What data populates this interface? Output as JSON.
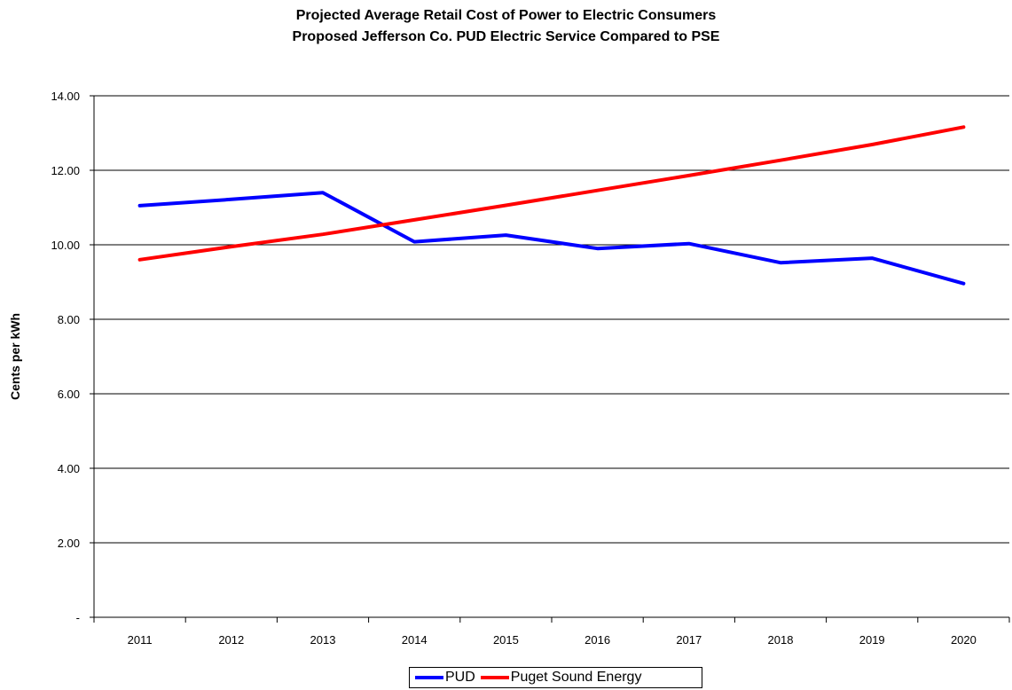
{
  "chart_data": {
    "type": "line",
    "title": "Projected Average Retail Cost of Power to Electric Consumers",
    "subtitle": "Proposed Jefferson Co. PUD Electric Service Compared to PSE",
    "xlabel": "",
    "ylabel": "Cents per kWh",
    "ylim": [
      0,
      14
    ],
    "y_ticks": [
      0,
      2,
      4,
      6,
      8,
      10,
      12,
      14
    ],
    "y_tick_labels": [
      "-",
      "2.00",
      "4.00",
      "6.00",
      "8.00",
      "10.00",
      "12.00",
      "14.00"
    ],
    "categories": [
      "2011",
      "2012",
      "2013",
      "2014",
      "2015",
      "2016",
      "2017",
      "2018",
      "2019",
      "2020"
    ],
    "grid": true,
    "legend_position": "bottom",
    "series": [
      {
        "name": "PUD",
        "color": "#0000ff",
        "values": [
          11.05,
          11.22,
          11.4,
          10.08,
          10.26,
          9.9,
          10.03,
          9.52,
          9.64,
          8.96
        ]
      },
      {
        "name": "Puget Sound Energy",
        "color": "#ff0000",
        "values": [
          9.6,
          9.95,
          10.28,
          10.67,
          11.06,
          11.46,
          11.86,
          12.27,
          12.69,
          13.16
        ]
      }
    ]
  }
}
